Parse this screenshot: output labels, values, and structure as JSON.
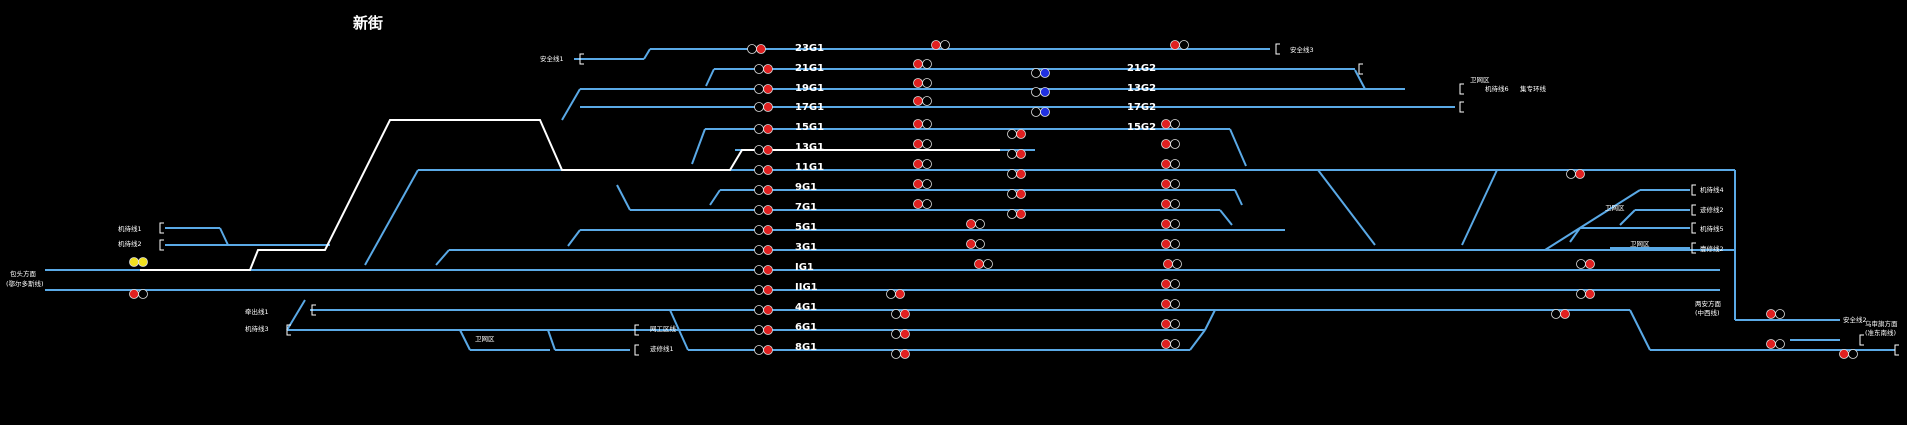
{
  "station": {
    "title": "新街"
  },
  "tracks": {
    "t23": "23G1",
    "t21": "21G1",
    "t19": "19G1",
    "t17": "17G1",
    "t15": "15G1",
    "t13": "13G1",
    "t11": "11G1",
    "t9": "9G1",
    "t7": "7G1",
    "t5": "5G1",
    "t3": "3G1",
    "tI": "IG1",
    "tII": "IIG1",
    "t4": "4G1",
    "t6": "6G1",
    "t8": "8G1",
    "t21b": "21G2",
    "t19b": "13G2",
    "t17b": "17G2",
    "t15b": "15G2"
  },
  "labels": {
    "safety1": "安全线1",
    "safety3": "安全线3",
    "safety2": "安全线2",
    "bangshuiqu1": "卫网区",
    "jichelin6": "机待线6",
    "jicheluo": "集专环线",
    "jidai4": "机待线4",
    "chuli2": "迹修线2",
    "weiwangqu2": "卫网区",
    "jidai5": "机待线5",
    "weiwangqu3": "卫网区",
    "bianwei2": "壹修线2",
    "jidai1": "机待线1",
    "jidai2": "机待线2",
    "left_dir": "包头方面",
    "left_dir_sub": "(鄂尔多斯线)",
    "qinxian1": "牵出线1",
    "jidai3": "机待线3",
    "weiwangqu4": "卫网区",
    "wangong": "网工区线",
    "chuli1": "迹修线1",
    "right_dir": "两安方面",
    "right_dir_sub": "(中西线)",
    "far_right": "乌审旗方面",
    "far_right_sub": "(准东南线)"
  },
  "colors": {
    "rail": "#5aa9e6",
    "route": "#ffffff",
    "signal_red": "#e02020",
    "signal_blue": "#2030e0",
    "signal_yellow": "#f0e020"
  }
}
